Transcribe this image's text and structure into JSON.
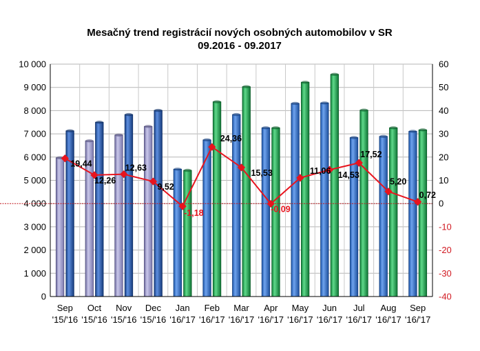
{
  "chart_data": {
    "type": "bar",
    "title": "Mesačný trend registrácií nových osobných automobilov v SR",
    "subtitle": "09.2016 - 09.2017",
    "categories": [
      {
        "month": "Sep",
        "period": "'15/'16"
      },
      {
        "month": "Oct",
        "period": "'15/'16"
      },
      {
        "month": "Nov",
        "period": "'15/'16"
      },
      {
        "month": "Dec",
        "period": "'15/'16"
      },
      {
        "month": "Jan",
        "period": "'16/'17"
      },
      {
        "month": "Feb",
        "period": "'16/'17"
      },
      {
        "month": "Mar",
        "period": "'16/'17"
      },
      {
        "month": "Apr",
        "period": "'16/'17"
      },
      {
        "month": "May",
        "period": "'16/'17"
      },
      {
        "month": "Jun",
        "period": "'16/'17"
      },
      {
        "month": "Jul",
        "period": "'16/'17"
      },
      {
        "month": "Aug",
        "period": "'16/'17"
      },
      {
        "month": "Sep",
        "period": "'16/'17"
      }
    ],
    "series": [
      {
        "values": [
          5970,
          6700,
          6950,
          7320,
          5480,
          6740,
          7830,
          7260,
          8310,
          8330,
          6840,
          6890,
          7110
        ],
        "color_2016": "#9a98c8",
        "color_2017": "#2b6cc4"
      },
      {
        "values": [
          7130,
          7500,
          7830,
          8010,
          5430,
          8380,
          9030,
          7260,
          9220,
          9560,
          8020,
          7260,
          7170
        ],
        "color_2016": "#1f58ad",
        "color_2017": "#1ea84a"
      },
      {
        "axis": "right",
        "type": "line",
        "color": "#e8141e",
        "values": [
          19.44,
          12.26,
          12.63,
          9.52,
          -1.18,
          24.36,
          15.53,
          -0.09,
          11.06,
          14.53,
          17.52,
          5.2,
          0.72
        ],
        "labels": [
          "19,44",
          "12,26",
          "12,63",
          "9,52",
          "-1,18",
          "24,36",
          "15,53",
          "-0,09",
          "11,06",
          "14,53",
          "17,52",
          "5,20",
          "0,72"
        ]
      }
    ],
    "y_left": {
      "min": 0,
      "max": 10000,
      "ticks": [
        "0",
        "1 000",
        "2 000",
        "3 000",
        "4 000",
        "5 000",
        "6 000",
        "7 000",
        "8 000",
        "9 000",
        "10 000"
      ]
    },
    "y_right": {
      "min": -40,
      "max": 60,
      "ticks": [
        "-40",
        "-30",
        "-20",
        "-10",
        "0",
        "10",
        "20",
        "30",
        "40",
        "50",
        "60"
      ]
    },
    "grid": true,
    "legend": "none"
  }
}
